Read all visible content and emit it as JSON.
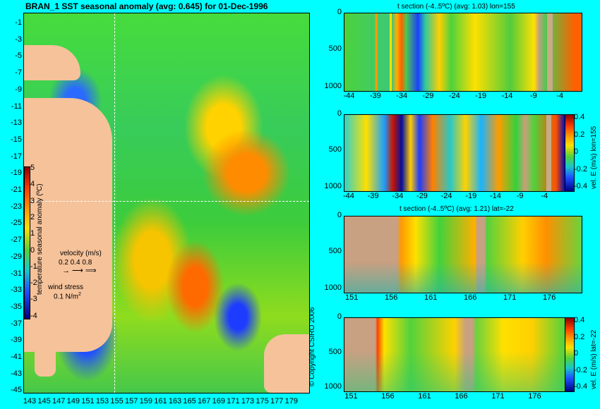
{
  "left_panel": {
    "title": "BRAN_1 SST seasonal anomaly (avg: 0.645) for 01-Dec-1996",
    "y_ticks": [
      "-1",
      "-3",
      "-5",
      "-7",
      "-9",
      "-11",
      "-13",
      "-15",
      "-17",
      "-19",
      "-21",
      "-23",
      "-25",
      "-27",
      "-29",
      "-31",
      "-33",
      "-35",
      "-37",
      "-39",
      "-41",
      "-43",
      "-45"
    ],
    "x_ticks": [
      "143",
      "145",
      "147",
      "149",
      "151",
      "153",
      "155",
      "157",
      "159",
      "161",
      "163",
      "165",
      "167",
      "169",
      "171",
      "173",
      "175",
      "177",
      "179"
    ],
    "colorbar_ticks": [
      "5",
      "4",
      "3",
      "2",
      "1",
      "0",
      "-1",
      "-2",
      "-3",
      "-4"
    ],
    "colorbar_label": "temperature seasonal anomaly (ºC)",
    "velocity_label": "velocity (m/s)",
    "velocity_values": "0.2 0.4 0.8",
    "wind_label": "wind stress",
    "wind_value": "0.1 N/m",
    "wind_sup": "2"
  },
  "panel1": {
    "title": "t section (-4..5ºC) (avg: 1.03) lon=155",
    "y_ticks": [
      "0",
      "500",
      "1000"
    ],
    "x_ticks": [
      "-44",
      "-39",
      "-34",
      "-29",
      "-24",
      "-19",
      "-14",
      "-9",
      "-4"
    ]
  },
  "panel2": {
    "y_ticks": [
      "0",
      "500",
      "1000"
    ],
    "x_ticks": [
      "-44",
      "-39",
      "-34",
      "-29",
      "-24",
      "-19",
      "-14",
      "-9",
      "-4"
    ],
    "colorbar_ticks": [
      "0.4",
      "0.2",
      "0",
      "-0.2",
      "-0.4"
    ],
    "colorbar_label": "vel. E (m/s) lon=155"
  },
  "panel3": {
    "title": "t section (-4..5ºC) (avg: 1.21) lat=-22",
    "y_ticks": [
      "0",
      "500",
      "1000"
    ],
    "x_ticks": [
      "151",
      "156",
      "161",
      "166",
      "171",
      "176"
    ]
  },
  "panel4": {
    "y_ticks": [
      "0",
      "500",
      "1000"
    ],
    "x_ticks": [
      "151",
      "156",
      "161",
      "166",
      "171",
      "176"
    ],
    "colorbar_ticks": [
      "0.4",
      "0.2",
      "0",
      "-0.2",
      "-0.4"
    ],
    "colorbar_label": "vel. E (m/s) lat=-22"
  },
  "copyright": "© Copyright CSIRO 2006",
  "colors": {
    "background": "#00ffff",
    "land": "#f5c29a",
    "section_land": "#c8aa88"
  },
  "chart_data": [
    {
      "type": "heatmap",
      "title": "BRAN_1 SST seasonal anomaly (avg: 0.645) for 01-Dec-1996",
      "xlim": [
        143,
        180
      ],
      "ylim": [
        -45,
        0
      ],
      "colorbar_range": [
        -4,
        5
      ],
      "colorbar_label": "temperature seasonal anomaly (ºC)"
    },
    {
      "type": "heatmap",
      "title": "t section (-4..5ºC) (avg: 1.03) lon=155",
      "xlim": [
        -45,
        0
      ],
      "ylim": [
        1050,
        0
      ]
    },
    {
      "type": "heatmap",
      "xlim": [
        -45,
        0
      ],
      "ylim": [
        1050,
        0
      ],
      "colorbar_range": [
        -0.4,
        0.4
      ],
      "colorbar_label": "vel. E (m/s) lon=155"
    },
    {
      "type": "heatmap",
      "title": "t section (-4..5ºC) (avg: 1.21) lat=-22",
      "xlim": [
        150,
        180
      ],
      "ylim": [
        1050,
        0
      ]
    },
    {
      "type": "heatmap",
      "xlim": [
        150,
        180
      ],
      "ylim": [
        1050,
        0
      ],
      "colorbar_range": [
        -0.4,
        0.4
      ],
      "colorbar_label": "vel. E (m/s) lat=-22"
    }
  ]
}
